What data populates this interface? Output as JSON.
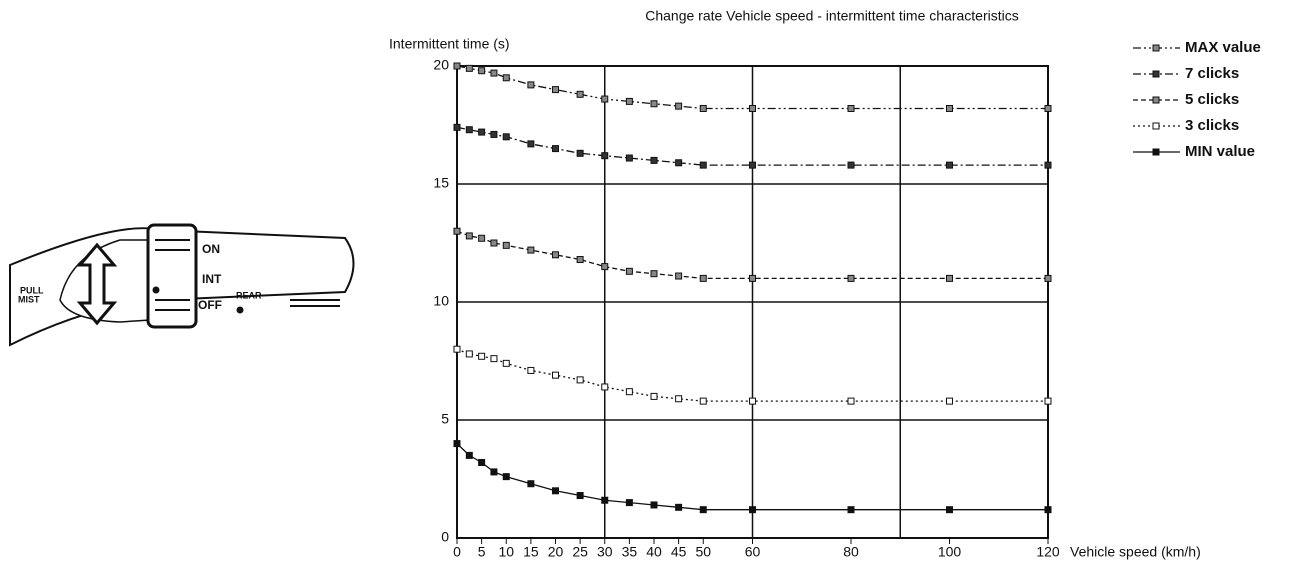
{
  "illustration": {
    "labels": [
      "ON",
      "INT",
      "OFF",
      "REAR",
      "PULL",
      "MIST"
    ]
  },
  "chart_data": {
    "type": "line",
    "title": "Change rate   Vehicle speed - intermittent time characteristics",
    "y_label": "Intermittent time (s)",
    "x_label": "Vehicle speed (km/h)",
    "x": [
      0,
      2.5,
      5,
      7.5,
      10,
      15,
      20,
      25,
      30,
      35,
      40,
      45,
      50,
      60,
      80,
      100,
      120
    ],
    "xlim": [
      0,
      120
    ],
    "ylim": [
      0,
      20
    ],
    "xticks": [
      0,
      5,
      10,
      15,
      20,
      25,
      30,
      35,
      40,
      45,
      50,
      60,
      80,
      100,
      120
    ],
    "yticks": [
      0,
      5,
      10,
      15,
      20
    ],
    "x_gridlines": [
      30,
      60,
      90
    ],
    "grid": true,
    "legend": "right",
    "series": [
      {
        "name": "MAX value",
        "color": "#111111",
        "marker_fill": "#888888",
        "dash": "8 3 2 3 2 3",
        "values": [
          20,
          19.9,
          19.8,
          19.7,
          19.5,
          19.2,
          19.0,
          18.8,
          18.6,
          18.5,
          18.4,
          18.3,
          18.2,
          18.2,
          18.2,
          18.2,
          18.2
        ]
      },
      {
        "name": "7 clicks",
        "color": "#111111",
        "marker_fill": "#333333",
        "dash": "8 3 2 3",
        "values": [
          17.4,
          17.3,
          17.2,
          17.1,
          17.0,
          16.7,
          16.5,
          16.3,
          16.2,
          16.1,
          16.0,
          15.9,
          15.8,
          15.8,
          15.8,
          15.8,
          15.8
        ]
      },
      {
        "name": "5 clicks",
        "color": "#111111",
        "marker_fill": "#888888",
        "dash": "5 3",
        "values": [
          13.0,
          12.8,
          12.7,
          12.5,
          12.4,
          12.2,
          12.0,
          11.8,
          11.5,
          11.3,
          11.2,
          11.1,
          11.0,
          11.0,
          11.0,
          11.0,
          11.0
        ]
      },
      {
        "name": "3 clicks",
        "color": "#111111",
        "marker_fill": "#ffffff",
        "dash": "2 3",
        "values": [
          8.0,
          7.8,
          7.7,
          7.6,
          7.4,
          7.1,
          6.9,
          6.7,
          6.4,
          6.2,
          6.0,
          5.9,
          5.8,
          5.8,
          5.8,
          5.8,
          5.8
        ]
      },
      {
        "name": "MIN value",
        "color": "#111111",
        "marker_fill": "#111111",
        "dash": "",
        "values": [
          4.0,
          3.5,
          3.2,
          2.8,
          2.6,
          2.3,
          2.0,
          1.8,
          1.6,
          1.5,
          1.4,
          1.3,
          1.2,
          1.2,
          1.2,
          1.2,
          1.2
        ]
      }
    ]
  }
}
